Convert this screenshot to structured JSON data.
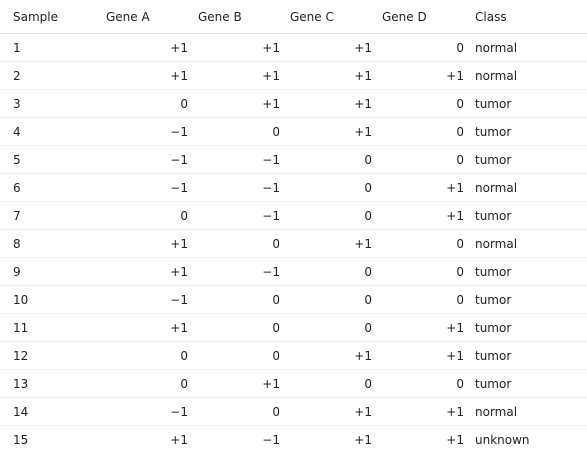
{
  "table": {
    "headers": [
      "Sample",
      "Gene A",
      "Gene B",
      "Gene C",
      "Gene D",
      "Class"
    ],
    "rows": [
      {
        "sample": "1",
        "a": "+1",
        "b": "+1",
        "c": "+1",
        "d": "0",
        "class": "normal"
      },
      {
        "sample": "2",
        "a": "+1",
        "b": "+1",
        "c": "+1",
        "d": "+1",
        "class": "normal"
      },
      {
        "sample": "3",
        "a": "0",
        "b": "+1",
        "c": "+1",
        "d": "0",
        "class": "tumor"
      },
      {
        "sample": "4",
        "a": "−1",
        "b": "0",
        "c": "+1",
        "d": "0",
        "class": "tumor"
      },
      {
        "sample": "5",
        "a": "−1",
        "b": "−1",
        "c": "0",
        "d": "0",
        "class": "tumor"
      },
      {
        "sample": "6",
        "a": "−1",
        "b": "−1",
        "c": "0",
        "d": "+1",
        "class": "normal"
      },
      {
        "sample": "7",
        "a": "0",
        "b": "−1",
        "c": "0",
        "d": "+1",
        "class": "tumor"
      },
      {
        "sample": "8",
        "a": "+1",
        "b": "0",
        "c": "+1",
        "d": "0",
        "class": "normal"
      },
      {
        "sample": "9",
        "a": "+1",
        "b": "−1",
        "c": "0",
        "d": "0",
        "class": "tumor"
      },
      {
        "sample": "10",
        "a": "−1",
        "b": "0",
        "c": "0",
        "d": "0",
        "class": "tumor"
      },
      {
        "sample": "11",
        "a": "+1",
        "b": "0",
        "c": "0",
        "d": "+1",
        "class": "tumor"
      },
      {
        "sample": "12",
        "a": "0",
        "b": "0",
        "c": "+1",
        "d": "+1",
        "class": "tumor"
      },
      {
        "sample": "13",
        "a": "0",
        "b": "+1",
        "c": "0",
        "d": "0",
        "class": "tumor"
      },
      {
        "sample": "14",
        "a": "−1",
        "b": "0",
        "c": "+1",
        "d": "+1",
        "class": "normal"
      },
      {
        "sample": "15",
        "a": "+1",
        "b": "−1",
        "c": "+1",
        "d": "+1",
        "class": "unknown"
      }
    ]
  }
}
